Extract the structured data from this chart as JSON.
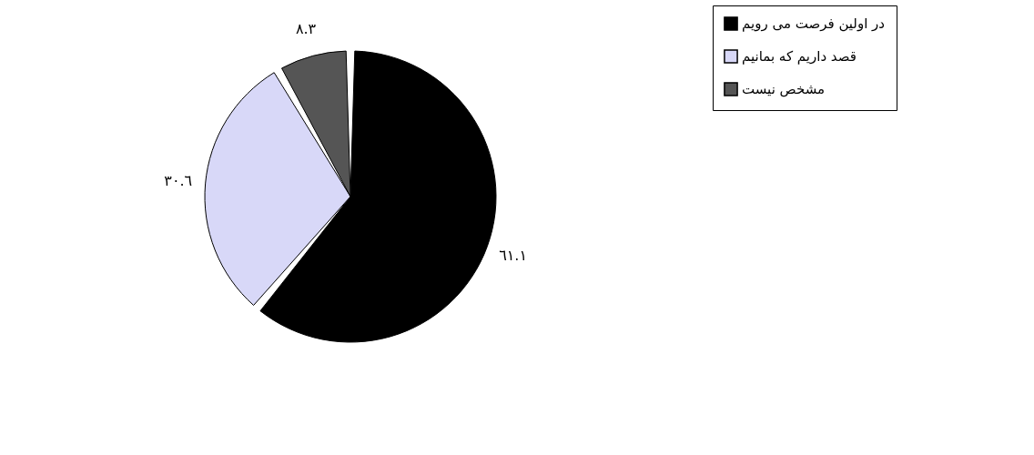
{
  "chart_data": {
    "type": "pie",
    "categories": [
      "در اولین فرصت می رویم",
      "قصد داریم که بمانیم",
      "مشخص نیست"
    ],
    "values": [
      61.1,
      30.6,
      8.3
    ],
    "colors": [
      "#000000",
      "#d8d8f8",
      "#555555"
    ],
    "value_labels": [
      "٦١.١",
      "٣٠.٦",
      "٨.٣"
    ],
    "legend": "top right"
  }
}
